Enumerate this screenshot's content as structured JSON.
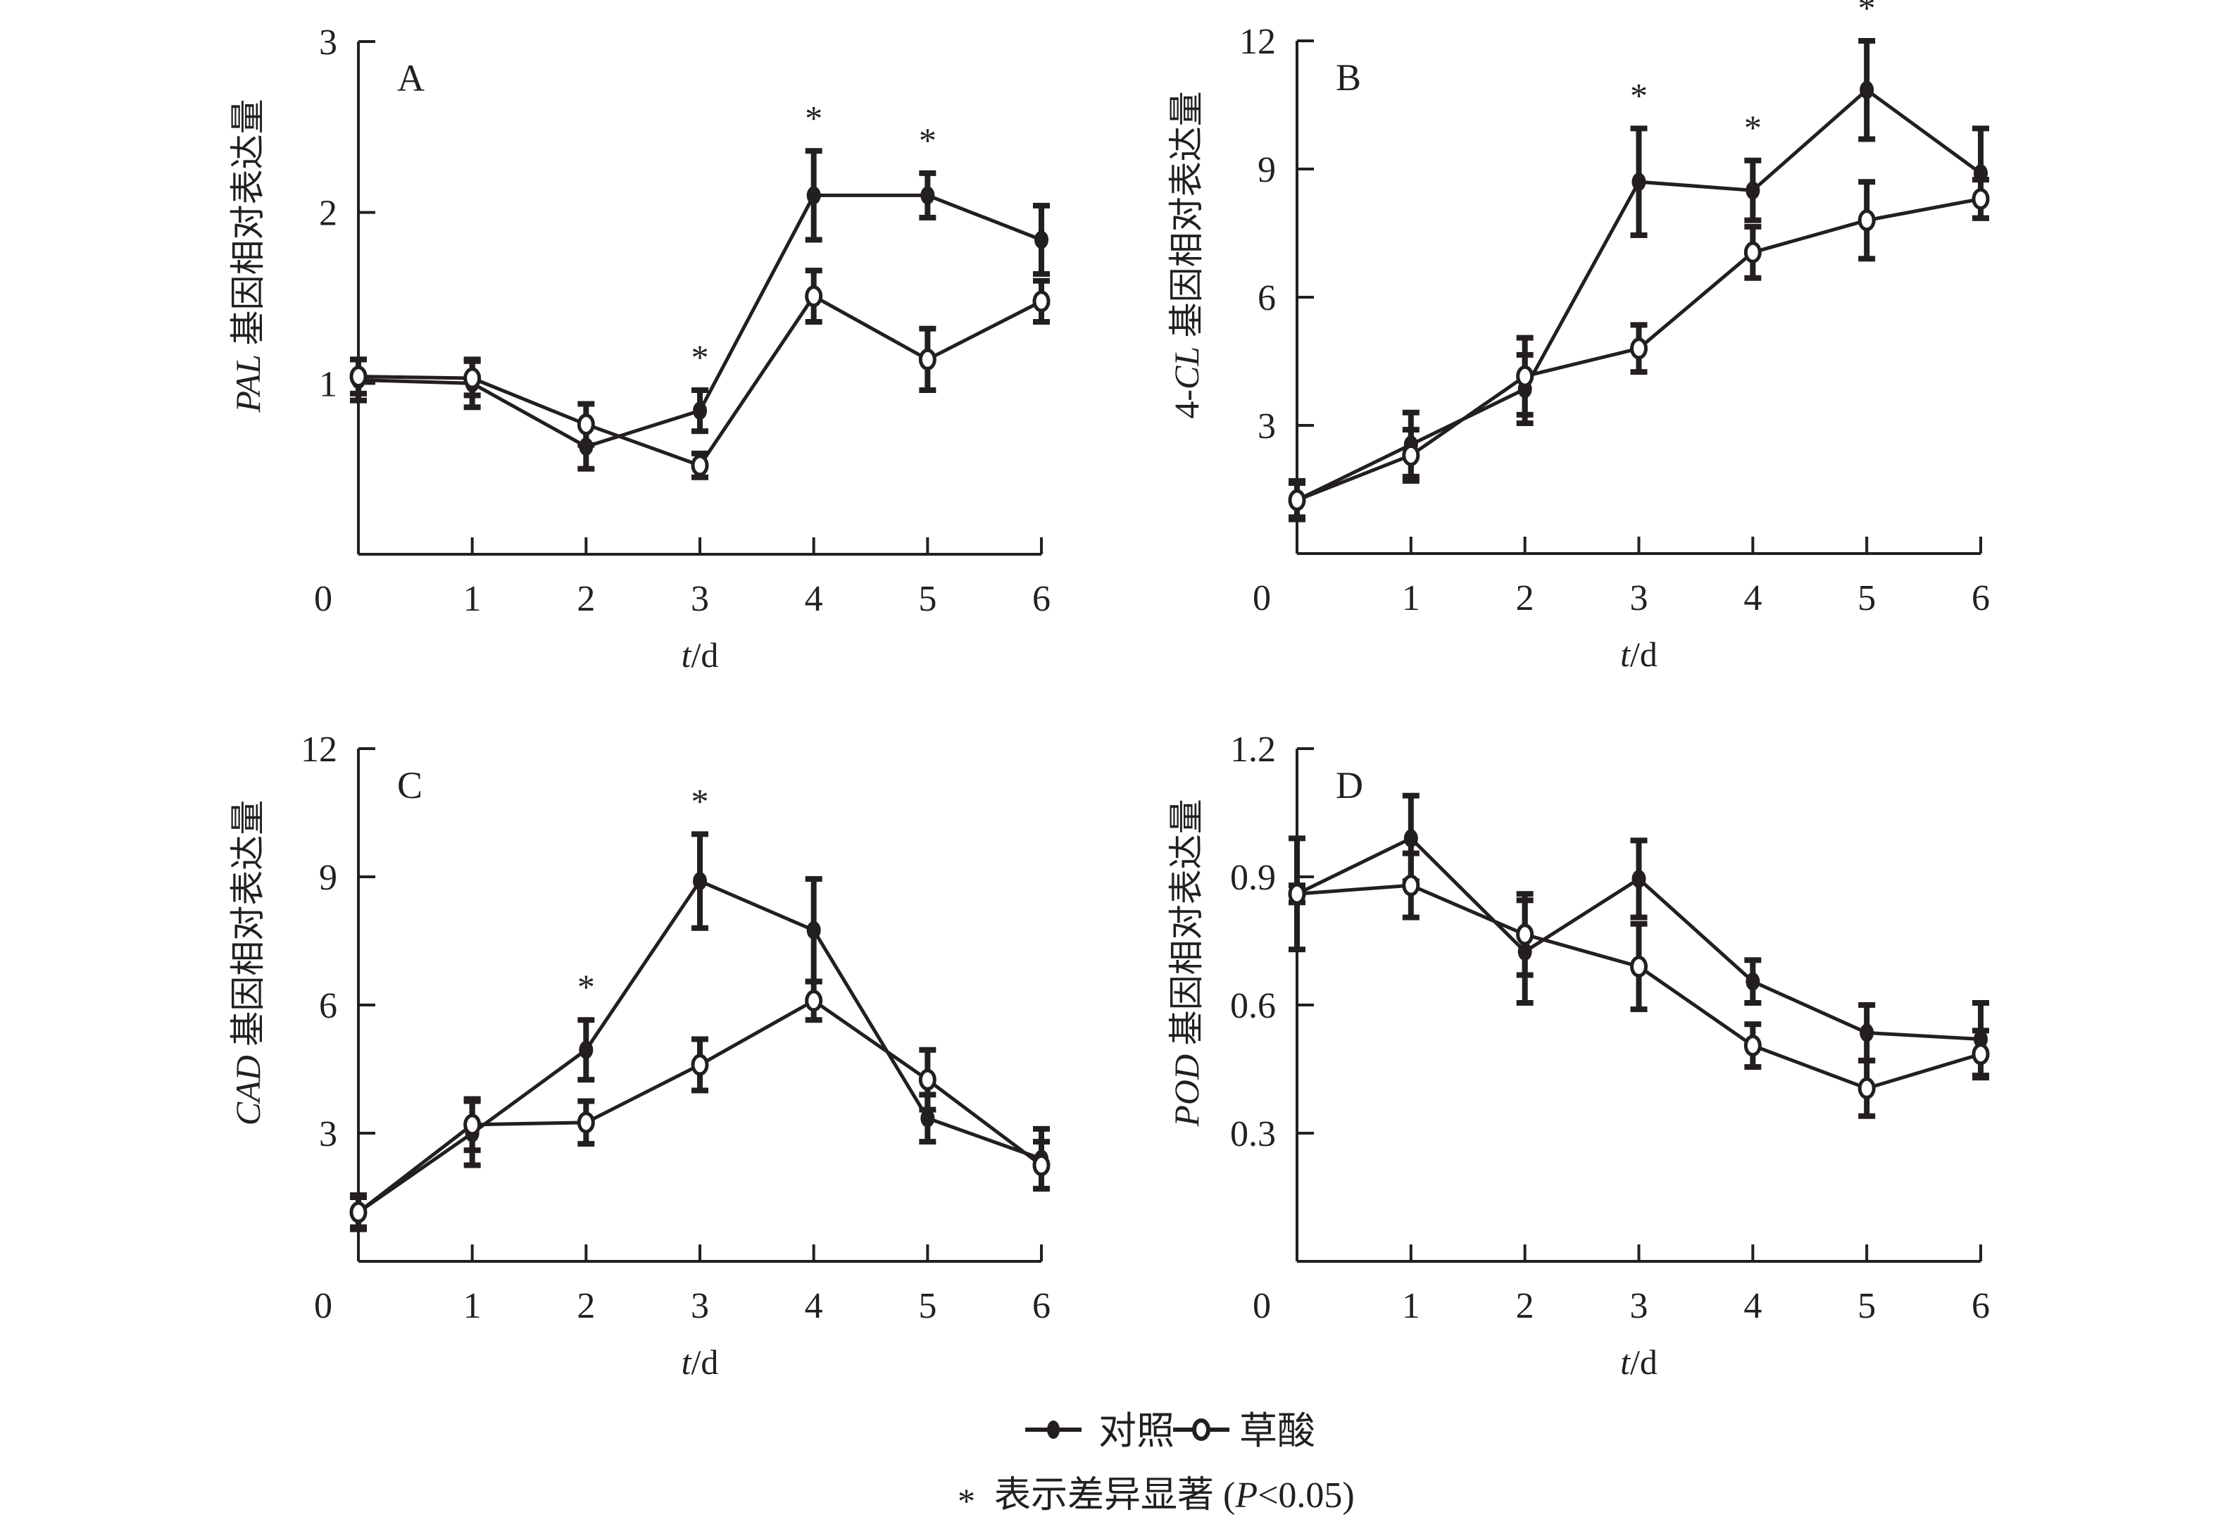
{
  "figure": {
    "legend": {
      "series": [
        {
          "key": "control",
          "label": "对照",
          "marker": "filled-circle"
        },
        {
          "key": "oxalic",
          "label": "草酸",
          "marker": "open-circle"
        }
      ],
      "note_star": "*",
      "note_text": "表示差异显著 (",
      "note_p": "P",
      "note_rest": "<0.05)"
    }
  },
  "chart_data": [
    {
      "type": "line",
      "panel": "A",
      "gene": "PAL",
      "ylabel_suffix": " 基因相对表达量",
      "xlabel_italic": "t",
      "xlabel_rest": "/d",
      "x": [
        0,
        1,
        2,
        3,
        4,
        5,
        6
      ],
      "xticks": [
        "0",
        "1",
        "2",
        "3",
        "4",
        "5",
        "6"
      ],
      "ylim": [
        0,
        3
      ],
      "yticks": [
        1,
        2,
        3
      ],
      "ytick_labels": [
        "1",
        "2",
        "3"
      ],
      "grid": false,
      "series": [
        {
          "name": "对照",
          "values": [
            1.02,
            1.0,
            0.63,
            0.84,
            2.1,
            2.1,
            1.84
          ],
          "errors": [
            0.12,
            0.14,
            0.13,
            0.12,
            0.26,
            0.13,
            0.2
          ]
        },
        {
          "name": "草酸",
          "values": [
            1.04,
            1.03,
            0.76,
            0.52,
            1.51,
            1.14,
            1.48
          ],
          "errors": [
            0.1,
            0.1,
            0.12,
            0.07,
            0.15,
            0.18,
            0.12
          ]
        }
      ],
      "significant_days": [
        3,
        4,
        5
      ],
      "significance_mark": "*"
    },
    {
      "type": "line",
      "panel": "B",
      "gene": "4-CL",
      "gene_prefix": "4-",
      "gene_italic": "CL",
      "ylabel_suffix": " 基因相对表达量",
      "xlabel_italic": "t",
      "xlabel_rest": "/d",
      "x": [
        0,
        1,
        2,
        3,
        4,
        5,
        6
      ],
      "xticks": [
        "0",
        "1",
        "2",
        "3",
        "4",
        "5",
        "6"
      ],
      "ylim": [
        0,
        12
      ],
      "yticks": [
        3,
        6,
        9,
        12
      ],
      "ytick_labels": [
        "3",
        "6",
        "9",
        "12"
      ],
      "grid": false,
      "series": [
        {
          "name": "对照",
          "values": [
            1.25,
            2.55,
            3.85,
            8.7,
            8.5,
            10.85,
            8.9
          ],
          "errors": [
            0.4,
            0.75,
            0.8,
            1.25,
            0.7,
            1.15,
            1.05
          ]
        },
        {
          "name": "草酸",
          "values": [
            1.25,
            2.3,
            4.15,
            4.8,
            7.05,
            7.8,
            8.3
          ],
          "errors": [
            0.45,
            0.6,
            0.9,
            0.55,
            0.6,
            0.9,
            0.45
          ]
        }
      ],
      "significant_days": [
        3,
        4,
        5
      ],
      "significance_mark": "*"
    },
    {
      "type": "line",
      "panel": "C",
      "gene": "CAD",
      "ylabel_suffix": " 基因相对表达量",
      "xlabel_italic": "t",
      "xlabel_rest": "/d",
      "x": [
        0,
        1,
        2,
        3,
        4,
        5,
        6
      ],
      "xticks": [
        "0",
        "1",
        "2",
        "3",
        "4",
        "5",
        "6"
      ],
      "ylim": [
        0,
        12
      ],
      "yticks": [
        3,
        6,
        9,
        12
      ],
      "ytick_labels": [
        "3",
        "6",
        "9",
        "12"
      ],
      "grid": false,
      "series": [
        {
          "name": "对照",
          "values": [
            1.15,
            3.0,
            4.95,
            8.9,
            7.75,
            3.35,
            2.4
          ],
          "errors": [
            0.4,
            0.75,
            0.7,
            1.1,
            1.2,
            0.55,
            0.7
          ]
        },
        {
          "name": "草酸",
          "values": [
            1.15,
            3.2,
            3.25,
            4.6,
            6.1,
            4.25,
            2.25
          ],
          "errors": [
            0.35,
            0.6,
            0.5,
            0.6,
            0.45,
            0.7,
            0.55
          ]
        }
      ],
      "significant_days": [
        2,
        3
      ],
      "significance_mark": "*"
    },
    {
      "type": "line",
      "panel": "D",
      "gene": "POD",
      "ylabel_suffix": " 基因相对表达量",
      "xlabel_italic": "t",
      "xlabel_rest": "/d",
      "x": [
        0,
        1,
        2,
        3,
        4,
        5,
        6
      ],
      "xticks": [
        "0",
        "1",
        "2",
        "3",
        "4",
        "5",
        "6"
      ],
      "ylim": [
        0,
        1.2
      ],
      "yticks": [
        0.3,
        0.6,
        0.9,
        1.2
      ],
      "ytick_labels": [
        "0.3",
        "0.6",
        "0.9",
        "1.2"
      ],
      "grid": false,
      "series": [
        {
          "name": "对照",
          "values": [
            0.86,
            0.99,
            0.725,
            0.895,
            0.655,
            0.535,
            0.52
          ],
          "errors": [
            0.13,
            0.1,
            0.12,
            0.09,
            0.05,
            0.065,
            0.085
          ]
        },
        {
          "name": "草酸",
          "values": [
            0.86,
            0.88,
            0.765,
            0.69,
            0.505,
            0.405,
            0.485
          ],
          "errors": [
            0.02,
            0.075,
            0.095,
            0.1,
            0.05,
            0.065,
            0.055
          ]
        }
      ],
      "significant_days": [],
      "significance_mark": "*"
    }
  ]
}
